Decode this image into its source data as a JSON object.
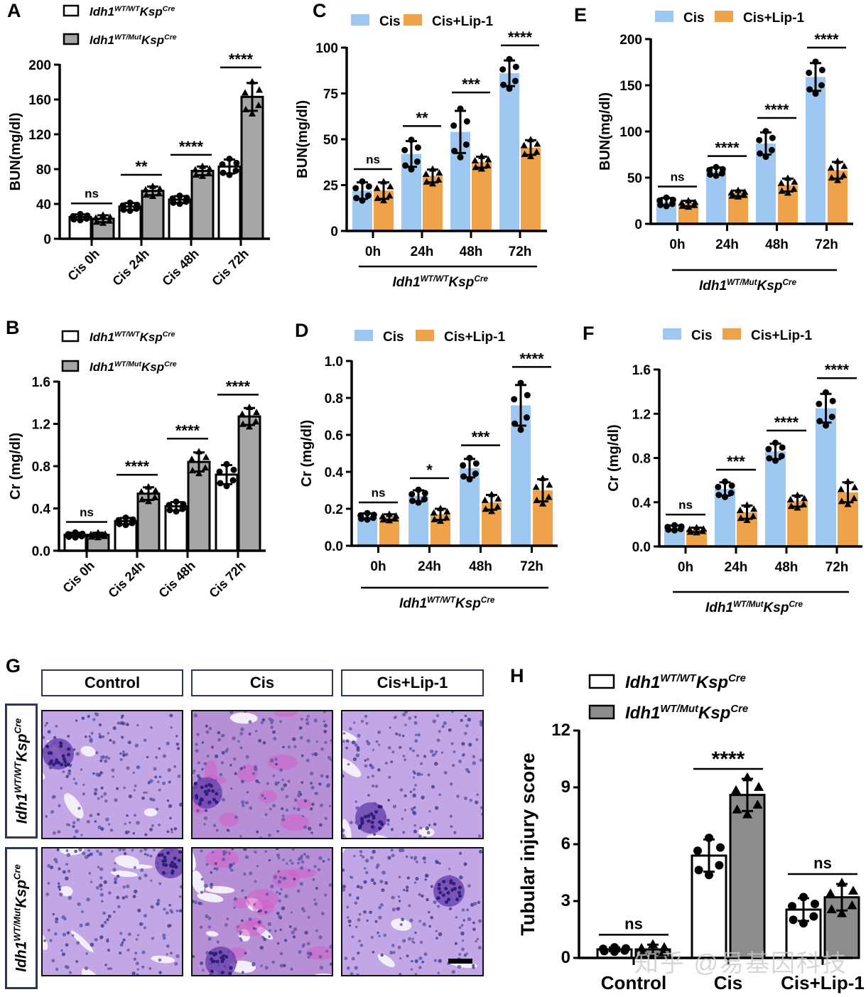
{
  "figure": {
    "colors": {
      "wt_fill": "#ffffff",
      "mut_fill": "#a6a6a6",
      "mut_fill_h": "#8c8c8c",
      "cis": "#9ec8f2",
      "cis_lip": "#f0a24a",
      "axis": "#000000"
    },
    "genotype_wt": {
      "base": "Idh1",
      "sup1": "WT/WT",
      "mid": "Ksp",
      "sup2": "Cre"
    },
    "genotype_mut": {
      "base": "Idh1",
      "sup1": "WT/Mut",
      "mid": "Ksp",
      "sup2": "Cre"
    },
    "watermark": "知乎 @易基因科技"
  },
  "chart_data": [
    {
      "id": "A",
      "type": "bar",
      "panel_label": "A",
      "ylabel": "BUN(mg/dl)",
      "ylim": [
        0,
        200
      ],
      "yticks": [
        "0",
        "40",
        "80",
        "120",
        "160",
        "200"
      ],
      "categories": [
        "Cis 0h",
        "Cis 24h",
        "Cis 48h",
        "Cis 72h"
      ],
      "xlabel_rotated": true,
      "group_label": null,
      "legend": [
        "Idh1 WT/WT KspCre",
        "Idh1 WT/Mut KspCre"
      ],
      "legend_style": "genotype",
      "series": [
        {
          "name": "Idh1 WT/WT KspCre",
          "color_key": "wt_fill",
          "outlined": true,
          "marker": "circle",
          "values": [
            25,
            37,
            45,
            83
          ],
          "sd": [
            3,
            4,
            4,
            8
          ]
        },
        {
          "name": "Idh1 WT/Mut KspCre",
          "color_key": "mut_fill",
          "outlined": true,
          "marker": "triangle",
          "values": [
            23,
            55,
            78,
            163
          ],
          "sd": [
            4,
            5,
            5,
            16
          ]
        }
      ],
      "significance": [
        "ns",
        "**",
        "****",
        "****"
      ]
    },
    {
      "id": "B",
      "type": "bar",
      "panel_label": "B",
      "ylabel": "Cr (mg/dl)",
      "ylim": [
        0,
        1.6
      ],
      "yticks": [
        "0.0",
        "0.4",
        "0.8",
        "1.2",
        "1.6"
      ],
      "categories": [
        "Cis 0h",
        "Cis 24h",
        "Cis 48h",
        "Cis 72h"
      ],
      "xlabel_rotated": true,
      "group_label": null,
      "legend": [
        "Idh1 WT/WT KspCre",
        "Idh1 WT/Mut KspCre"
      ],
      "legend_style": "genotype",
      "series": [
        {
          "name": "Idh1 WT/WT KspCre",
          "color_key": "wt_fill",
          "outlined": true,
          "marker": "circle",
          "values": [
            0.15,
            0.28,
            0.42,
            0.72
          ],
          "sd": [
            0.02,
            0.03,
            0.04,
            0.09
          ]
        },
        {
          "name": "Idh1 WT/Mut KspCre",
          "color_key": "mut_fill",
          "outlined": true,
          "marker": "triangle",
          "values": [
            0.15,
            0.54,
            0.84,
            1.27
          ],
          "sd": [
            0.02,
            0.06,
            0.09,
            0.08
          ]
        }
      ],
      "significance": [
        "ns",
        "****",
        "****",
        "****"
      ]
    },
    {
      "id": "C",
      "type": "bar",
      "panel_label": "C",
      "ylabel": "BUN(mg/dl)",
      "ylim": [
        0,
        100
      ],
      "yticks": [
        "0",
        "25",
        "50",
        "75",
        "100"
      ],
      "categories": [
        "0h",
        "24h",
        "48h",
        "72h"
      ],
      "xlabel_rotated": false,
      "group_label": "wt",
      "legend": [
        "Cis",
        "Cis+Lip-1"
      ],
      "legend_style": "treatment",
      "series": [
        {
          "name": "Cis",
          "color_key": "cis",
          "outlined": false,
          "marker": "circle",
          "values": [
            22,
            42,
            54,
            86
          ],
          "sd": [
            4.5,
            7,
            11.5,
            7
          ]
        },
        {
          "name": "Cis+Lip-1",
          "color_key": "cis_lip",
          "outlined": false,
          "marker": "triangle",
          "values": [
            22,
            30,
            37.5,
            45.5
          ],
          "sd": [
            4.5,
            3.5,
            3,
            4
          ]
        }
      ],
      "significance": [
        "ns",
        "**",
        "***",
        "****"
      ]
    },
    {
      "id": "D",
      "type": "bar",
      "panel_label": "D",
      "ylabel": "Cr (mg/dl)",
      "ylim": [
        0,
        1.0
      ],
      "yticks": [
        "0.0",
        "0.2",
        "0.4",
        "0.6",
        "0.8",
        "1.0"
      ],
      "categories": [
        "0h",
        "24h",
        "48h",
        "72h"
      ],
      "xlabel_rotated": false,
      "group_label": "wt",
      "legend": [
        "Cis",
        "Cis+Lip-1"
      ],
      "legend_style": "treatment",
      "series": [
        {
          "name": "Cis",
          "color_key": "cis",
          "outlined": false,
          "marker": "circle",
          "values": [
            0.16,
            0.27,
            0.42,
            0.76
          ],
          "sd": [
            0.015,
            0.03,
            0.05,
            0.11
          ]
        },
        {
          "name": "Cis+Lip-1",
          "color_key": "cis_lip",
          "outlined": false,
          "marker": "triangle",
          "values": [
            0.155,
            0.17,
            0.235,
            0.3
          ],
          "sd": [
            0.015,
            0.03,
            0.04,
            0.06
          ]
        }
      ],
      "significance": [
        "ns",
        "*",
        "***",
        "****"
      ]
    },
    {
      "id": "E",
      "type": "bar",
      "panel_label": "E",
      "ylabel": "BUN(mg/dl)",
      "ylim": [
        0,
        200
      ],
      "yticks": [
        "0",
        "50",
        "100",
        "150",
        "200"
      ],
      "categories": [
        "0h",
        "24h",
        "48h",
        "72h"
      ],
      "xlabel_rotated": false,
      "group_label": "mut",
      "legend": [
        "Cis",
        "Cis+Lip-1"
      ],
      "legend_style": "treatment",
      "series": [
        {
          "name": "Cis",
          "color_key": "cis",
          "outlined": false,
          "marker": "circle",
          "values": [
            24,
            57,
            87,
            159
          ],
          "sd": [
            4,
            4,
            12,
            15
          ]
        },
        {
          "name": "Cis+Lip-1",
          "color_key": "cis_lip",
          "outlined": false,
          "marker": "triangle",
          "values": [
            22,
            33,
            42,
            58
          ],
          "sd": [
            3,
            3,
            7,
            9
          ]
        }
      ],
      "significance": [
        "ns",
        "****",
        "****",
        "****"
      ]
    },
    {
      "id": "F",
      "type": "bar",
      "panel_label": "F",
      "ylabel": "Cr (mg/dl)",
      "ylim": [
        0,
        1.6
      ],
      "yticks": [
        "0.0",
        "0.4",
        "0.8",
        "1.2",
        "1.6"
      ],
      "categories": [
        "0h",
        "24h",
        "48h",
        "72h"
      ],
      "xlabel_rotated": false,
      "group_label": "mut",
      "legend": [
        "Cis",
        "Cis+Lip-1"
      ],
      "legend_style": "treatment",
      "series": [
        {
          "name": "Cis",
          "color_key": "cis",
          "outlined": false,
          "marker": "circle",
          "values": [
            0.17,
            0.52,
            0.86,
            1.25
          ],
          "sd": [
            0.02,
            0.06,
            0.07,
            0.13
          ]
        },
        {
          "name": "Cis+Lip-1",
          "color_key": "cis_lip",
          "outlined": false,
          "marker": "triangle",
          "values": [
            0.15,
            0.31,
            0.41,
            0.49
          ],
          "sd": [
            0.02,
            0.06,
            0.05,
            0.09
          ]
        }
      ],
      "significance": [
        "ns",
        "***",
        "****",
        "****"
      ]
    },
    {
      "id": "H",
      "type": "bar",
      "panel_label": "H",
      "ylabel": "Tubular injury score",
      "ylim": [
        0,
        12
      ],
      "yticks": [
        "0",
        "3",
        "6",
        "9",
        "12"
      ],
      "categories": [
        "Control",
        "Cis",
        "Cis+Lip-1"
      ],
      "xlabel_rotated": false,
      "group_label": null,
      "legend": [
        "Idh1 WT/WT KspCre",
        "Idh1 WT/Mut KspCre"
      ],
      "legend_style": "genotype",
      "series": [
        {
          "name": "Idh1 WT/WT KspCre",
          "color_key": "wt_fill",
          "outlined": true,
          "marker": "circle",
          "values": [
            0.45,
            5.4,
            2.55
          ],
          "sd": [
            0.1,
            0.85,
            0.6
          ]
        },
        {
          "name": "Idh1 WT/Mut KspCre",
          "color_key": "mut_fill_h",
          "outlined": true,
          "marker": "triangle",
          "values": [
            0.45,
            8.6,
            3.2
          ],
          "sd": [
            0.25,
            0.85,
            0.7
          ]
        }
      ],
      "significance": [
        "ns",
        "****",
        "ns"
      ]
    }
  ],
  "histology": {
    "panel_label": "G",
    "columns": [
      "Control",
      "Cis",
      "Cis+Lip-1"
    ],
    "rows": [
      {
        "base": "Idh1",
        "sup1": "WT/WT",
        "mid": "Ksp",
        "sup2": "Cre"
      },
      {
        "base": "Idh1",
        "sup1": "WT/Mut",
        "mid": "Ksp",
        "sup2": "Cre"
      }
    ],
    "images": [
      [
        "kidney-section-wt-control",
        "kidney-section-wt-cis",
        "kidney-section-wt-cis-lip1"
      ],
      [
        "kidney-section-mut-control",
        "kidney-section-mut-cis",
        "kidney-section-mut-cis-lip1"
      ]
    ]
  }
}
